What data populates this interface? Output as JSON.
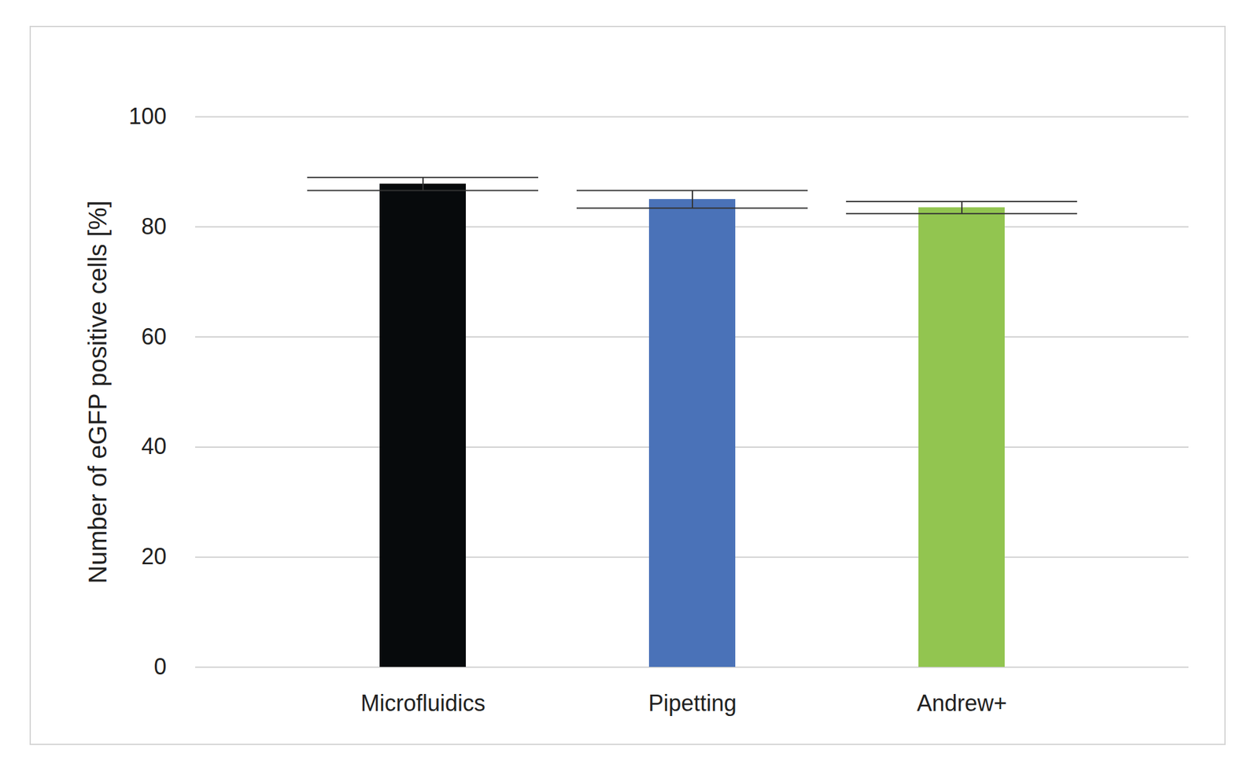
{
  "chart_data": {
    "type": "bar",
    "categories": [
      "Microfluidics",
      "Pipetting",
      "Andrew+"
    ],
    "values": [
      87.8,
      85.0,
      83.5
    ],
    "errors": [
      1.2,
      1.6,
      1.1
    ],
    "colors": [
      "#070a0c",
      "#4a72b8",
      "#92c550"
    ],
    "y_label": "Number of eGFP positive cells [%]",
    "ylim": [
      0,
      100
    ],
    "yticks": [
      0,
      20,
      40,
      60,
      80,
      100
    ],
    "grid": true
  }
}
